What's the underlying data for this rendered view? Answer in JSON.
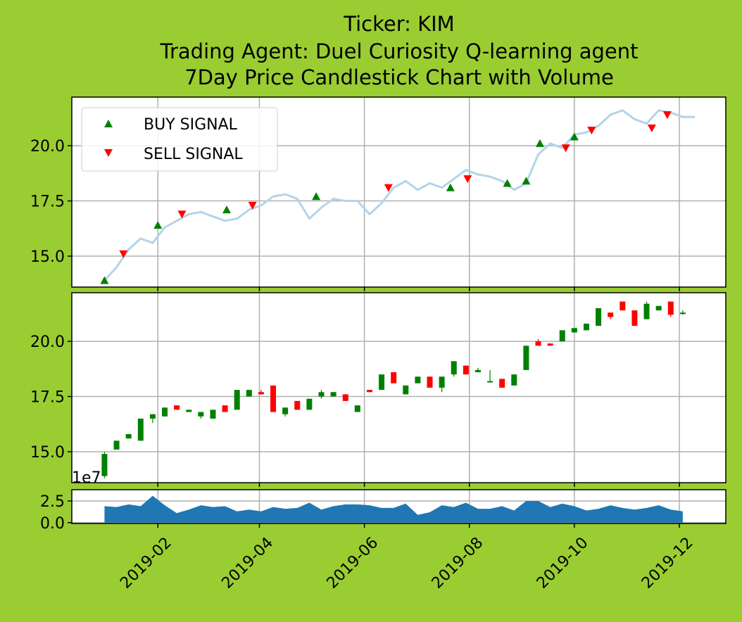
{
  "title_lines": [
    "Ticker: KIM",
    "Trading Agent: Duel Curiosity Q-learning agent",
    "7Day Price Candlestick Chart with Volume"
  ],
  "colors": {
    "background": "#9acd32",
    "price_line": "#b3d4e9",
    "buy": "#008000",
    "sell": "#ff0000",
    "volume": "#1f77b4",
    "grid": "#b0b0b0"
  },
  "chart_data": [
    {
      "type": "line",
      "panel": "price-signals",
      "ylim": [
        13.6,
        22.2
      ],
      "yticks": [
        "15.0",
        "17.5",
        "20.0"
      ],
      "grid": true,
      "legend": {
        "placement": "top-left",
        "entries": [
          "BUY SIGNAL",
          "SELL SIGNAL"
        ]
      },
      "price": [
        [
          "2019-01-01",
          13.9
        ],
        [
          "2019-01-08",
          14.5
        ],
        [
          "2019-01-15",
          15.3
        ],
        [
          "2019-01-22",
          15.8
        ],
        [
          "2019-01-29",
          15.6
        ],
        [
          "2019-02-05",
          16.3
        ],
        [
          "2019-02-12",
          16.6
        ],
        [
          "2019-02-19",
          16.9
        ],
        [
          "2019-02-26",
          17.0
        ],
        [
          "2019-03-05",
          16.8
        ],
        [
          "2019-03-12",
          16.6
        ],
        [
          "2019-03-19",
          16.7
        ],
        [
          "2019-03-26",
          17.1
        ],
        [
          "2019-04-02",
          17.3
        ],
        [
          "2019-04-09",
          17.7
        ],
        [
          "2019-04-16",
          17.8
        ],
        [
          "2019-04-23",
          17.6
        ],
        [
          "2019-04-30",
          16.7
        ],
        [
          "2019-05-07",
          17.2
        ],
        [
          "2019-05-14",
          17.6
        ],
        [
          "2019-05-21",
          17.5
        ],
        [
          "2019-05-28",
          17.5
        ],
        [
          "2019-06-04",
          16.9
        ],
        [
          "2019-06-11",
          17.4
        ],
        [
          "2019-06-18",
          18.1
        ],
        [
          "2019-06-25",
          18.4
        ],
        [
          "2019-07-02",
          18.0
        ],
        [
          "2019-07-09",
          18.3
        ],
        [
          "2019-07-16",
          18.1
        ],
        [
          "2019-07-23",
          18.5
        ],
        [
          "2019-07-30",
          18.9
        ],
        [
          "2019-08-06",
          18.7
        ],
        [
          "2019-08-13",
          18.6
        ],
        [
          "2019-08-20",
          18.4
        ],
        [
          "2019-08-27",
          18.0
        ],
        [
          "2019-09-03",
          18.3
        ],
        [
          "2019-09-10",
          19.6
        ],
        [
          "2019-09-17",
          20.1
        ],
        [
          "2019-09-24",
          19.9
        ],
        [
          "2019-10-01",
          20.5
        ],
        [
          "2019-10-08",
          20.6
        ],
        [
          "2019-10-15",
          20.9
        ],
        [
          "2019-10-22",
          21.4
        ],
        [
          "2019-10-29",
          21.6
        ],
        [
          "2019-11-05",
          21.2
        ],
        [
          "2019-11-12",
          21.0
        ],
        [
          "2019-11-19",
          21.6
        ],
        [
          "2019-11-26",
          21.5
        ],
        [
          "2019-12-03",
          21.3
        ],
        [
          "2019-12-10",
          21.3
        ]
      ],
      "buy_signals": [
        [
          "2019-01-01",
          13.9
        ],
        [
          "2019-02-01",
          16.4
        ],
        [
          "2019-03-13",
          17.1
        ],
        [
          "2019-05-04",
          17.7
        ],
        [
          "2019-07-21",
          18.1
        ],
        [
          "2019-08-23",
          18.3
        ],
        [
          "2019-09-03",
          18.4
        ],
        [
          "2019-09-11",
          20.1
        ],
        [
          "2019-10-01",
          20.4
        ]
      ],
      "sell_signals": [
        [
          "2019-01-12",
          15.1
        ],
        [
          "2019-02-15",
          16.9
        ],
        [
          "2019-03-28",
          17.3
        ],
        [
          "2019-06-15",
          18.1
        ],
        [
          "2019-07-31",
          18.5
        ],
        [
          "2019-09-26",
          19.9
        ],
        [
          "2019-10-11",
          20.7
        ],
        [
          "2019-11-15",
          20.8
        ],
        [
          "2019-11-24",
          21.4
        ]
      ]
    },
    {
      "type": "candlestick",
      "panel": "candles",
      "ylim": [
        13.6,
        22.2
      ],
      "yticks": [
        "15.0",
        "17.5",
        "20.0"
      ],
      "grid": true,
      "candles": [
        [
          "2019-01-01",
          13.9,
          14.9,
          13.8,
          15.0
        ],
        [
          "2019-01-08",
          15.1,
          15.5,
          15.1,
          15.5
        ],
        [
          "2019-01-15",
          15.6,
          15.8,
          15.6,
          15.8
        ],
        [
          "2019-01-22",
          15.5,
          16.5,
          15.5,
          16.5
        ],
        [
          "2019-01-29",
          16.5,
          16.7,
          16.3,
          16.7
        ],
        [
          "2019-02-05",
          16.6,
          17.0,
          16.6,
          17.0
        ],
        [
          "2019-02-12",
          17.1,
          16.9,
          16.9,
          17.1
        ],
        [
          "2019-02-19",
          16.8,
          16.9,
          16.8,
          16.9
        ],
        [
          "2019-02-26",
          16.6,
          16.8,
          16.5,
          16.8
        ],
        [
          "2019-03-05",
          16.5,
          16.9,
          16.5,
          16.9
        ],
        [
          "2019-03-12",
          17.1,
          16.8,
          16.8,
          17.1
        ],
        [
          "2019-03-19",
          16.9,
          17.8,
          16.9,
          17.8
        ],
        [
          "2019-03-26",
          17.5,
          17.8,
          17.5,
          17.8
        ],
        [
          "2019-04-02",
          17.7,
          17.6,
          17.6,
          17.8
        ],
        [
          "2019-04-09",
          18.0,
          16.8,
          16.8,
          18.0
        ],
        [
          "2019-04-16",
          16.7,
          17.0,
          16.6,
          17.0
        ],
        [
          "2019-04-23",
          17.3,
          16.9,
          16.9,
          17.3
        ],
        [
          "2019-04-30",
          16.9,
          17.4,
          16.9,
          17.4
        ],
        [
          "2019-05-07",
          17.5,
          17.7,
          17.4,
          17.8
        ],
        [
          "2019-05-14",
          17.5,
          17.7,
          17.5,
          17.7
        ],
        [
          "2019-05-21",
          17.6,
          17.3,
          17.3,
          17.6
        ],
        [
          "2019-05-28",
          16.8,
          17.1,
          16.8,
          17.1
        ],
        [
          "2019-06-04",
          17.8,
          17.7,
          17.7,
          17.8
        ],
        [
          "2019-06-11",
          17.8,
          18.5,
          17.8,
          18.5
        ],
        [
          "2019-06-18",
          18.6,
          18.1,
          18.1,
          18.6
        ],
        [
          "2019-06-25",
          17.6,
          18.0,
          17.6,
          18.0
        ],
        [
          "2019-07-02",
          18.1,
          18.4,
          18.1,
          18.4
        ],
        [
          "2019-07-09",
          18.4,
          17.9,
          17.9,
          18.4
        ],
        [
          "2019-07-16",
          17.9,
          18.4,
          17.7,
          18.4
        ],
        [
          "2019-07-23",
          18.5,
          19.1,
          18.4,
          19.1
        ],
        [
          "2019-07-30",
          18.9,
          18.5,
          18.5,
          18.9
        ],
        [
          "2019-08-06",
          18.6,
          18.7,
          18.6,
          18.8
        ],
        [
          "2019-08-13",
          18.2,
          18.2,
          18.2,
          18.7
        ],
        [
          "2019-08-20",
          18.3,
          17.9,
          17.9,
          18.3
        ],
        [
          "2019-08-27",
          18.0,
          18.5,
          18.0,
          18.5
        ],
        [
          "2019-09-03",
          18.7,
          19.8,
          18.7,
          19.8
        ],
        [
          "2019-09-10",
          20.0,
          19.8,
          19.8,
          20.1
        ],
        [
          "2019-09-17",
          19.9,
          19.8,
          19.8,
          19.9
        ],
        [
          "2019-09-24",
          20.0,
          20.5,
          20.0,
          20.5
        ],
        [
          "2019-10-01",
          20.4,
          20.6,
          20.4,
          20.6
        ],
        [
          "2019-10-08",
          20.5,
          20.8,
          20.5,
          20.8
        ],
        [
          "2019-10-15",
          20.7,
          21.5,
          20.7,
          21.5
        ],
        [
          "2019-10-22",
          21.3,
          21.1,
          21.0,
          21.3
        ],
        [
          "2019-10-29",
          21.8,
          21.4,
          21.4,
          21.8
        ],
        [
          "2019-11-05",
          21.4,
          20.7,
          20.7,
          21.4
        ],
        [
          "2019-11-12",
          21.0,
          21.7,
          21.0,
          21.8
        ],
        [
          "2019-11-19",
          21.4,
          21.6,
          21.4,
          21.6
        ],
        [
          "2019-11-26",
          21.8,
          21.2,
          21.1,
          21.8
        ],
        [
          "2019-12-03",
          21.3,
          21.3,
          21.2,
          21.4
        ]
      ]
    },
    {
      "type": "area",
      "panel": "volume",
      "ylim": [
        -0.1,
        3.8
      ],
      "yticks": [
        "0.0",
        "2.5"
      ],
      "offset_label": "1e7",
      "grid": true,
      "volume": [
        [
          "2019-01-01",
          1.9
        ],
        [
          "2019-01-08",
          1.8
        ],
        [
          "2019-01-15",
          2.1
        ],
        [
          "2019-01-22",
          1.9
        ],
        [
          "2019-01-29",
          3.1
        ],
        [
          "2019-02-05",
          2.0
        ],
        [
          "2019-02-12",
          1.1
        ],
        [
          "2019-02-19",
          1.5
        ],
        [
          "2019-02-26",
          2.0
        ],
        [
          "2019-03-05",
          1.8
        ],
        [
          "2019-03-12",
          1.9
        ],
        [
          "2019-03-19",
          1.3
        ],
        [
          "2019-03-26",
          1.5
        ],
        [
          "2019-04-02",
          1.3
        ],
        [
          "2019-04-09",
          1.8
        ],
        [
          "2019-04-16",
          1.6
        ],
        [
          "2019-04-23",
          1.7
        ],
        [
          "2019-04-30",
          2.3
        ],
        [
          "2019-05-07",
          1.5
        ],
        [
          "2019-05-14",
          1.9
        ],
        [
          "2019-05-21",
          2.1
        ],
        [
          "2019-05-28",
          2.1
        ],
        [
          "2019-06-04",
          2.0
        ],
        [
          "2019-06-11",
          1.7
        ],
        [
          "2019-06-18",
          1.7
        ],
        [
          "2019-06-25",
          2.2
        ],
        [
          "2019-07-02",
          0.9
        ],
        [
          "2019-07-09",
          1.2
        ],
        [
          "2019-07-16",
          2.0
        ],
        [
          "2019-07-23",
          1.8
        ],
        [
          "2019-07-30",
          2.3
        ],
        [
          "2019-08-06",
          1.6
        ],
        [
          "2019-08-13",
          1.6
        ],
        [
          "2019-08-20",
          1.9
        ],
        [
          "2019-08-27",
          1.4
        ],
        [
          "2019-09-03",
          2.5
        ],
        [
          "2019-09-10",
          2.5
        ],
        [
          "2019-09-17",
          1.8
        ],
        [
          "2019-09-24",
          2.2
        ],
        [
          "2019-10-01",
          1.9
        ],
        [
          "2019-10-08",
          1.4
        ],
        [
          "2019-10-15",
          1.6
        ],
        [
          "2019-10-22",
          2.0
        ],
        [
          "2019-10-29",
          1.7
        ],
        [
          "2019-11-05",
          1.5
        ],
        [
          "2019-11-12",
          1.7
        ],
        [
          "2019-11-19",
          2.0
        ],
        [
          "2019-11-26",
          1.5
        ],
        [
          "2019-12-03",
          1.3
        ]
      ]
    }
  ],
  "x_axis": {
    "ticks": [
      "2019-02",
      "2019-04",
      "2019-06",
      "2019-08",
      "2019-10",
      "2019-12"
    ],
    "range": [
      "2018-12-13",
      "2019-12-28"
    ]
  }
}
